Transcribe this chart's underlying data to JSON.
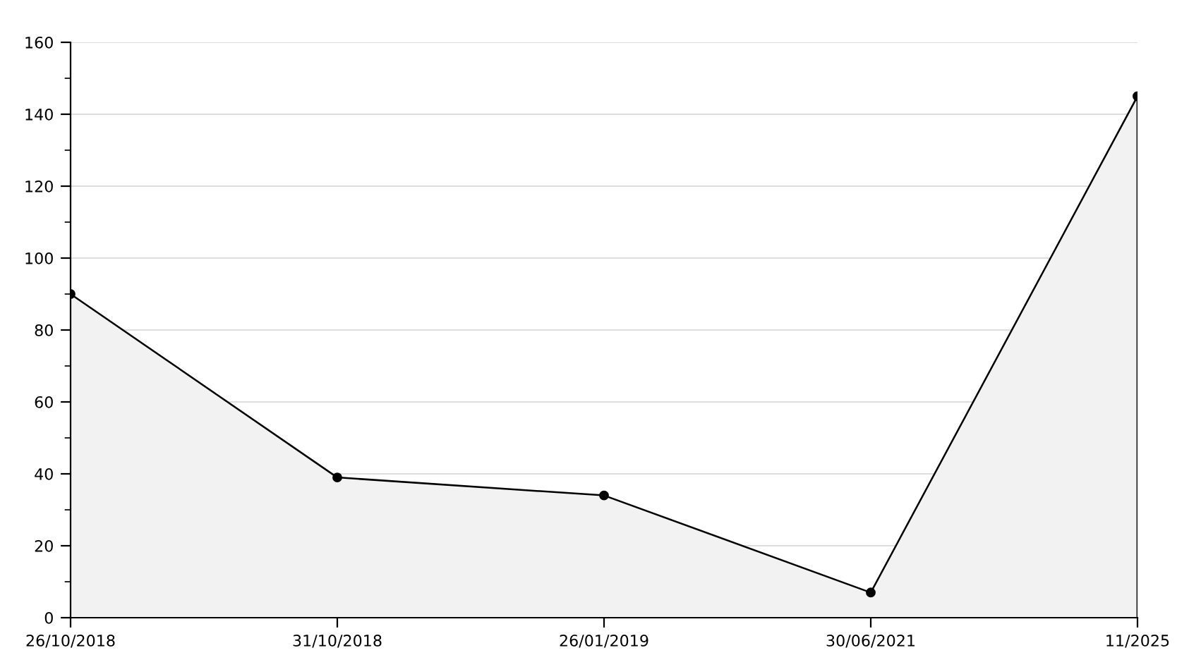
{
  "chart_data": {
    "type": "area",
    "categories": [
      "26/10/2018",
      "31/10/2018",
      "26/01/2019",
      "30/06/2021",
      "11/2025"
    ],
    "series": [
      {
        "color": "#000000",
        "values": [
          90,
          39,
          34,
          7,
          145
        ]
      }
    ],
    "ylim": [
      0,
      160
    ],
    "yticks": [
      0,
      {
        "value": 10,
        "label": null
      },
      20,
      {
        "value": 30,
        "label": null
      },
      40,
      {
        "value": 50,
        "label": null
      },
      60,
      {
        "value": 70,
        "label": null
      },
      80,
      {
        "value": 90,
        "label": null
      },
      100,
      {
        "value": 110,
        "label": null
      },
      120,
      {
        "value": 130,
        "label": null
      },
      140,
      {
        "value": 150,
        "label": null
      },
      160
    ],
    "grid": "y",
    "marker": "circle",
    "line_style": "solid",
    "legend": false
  }
}
